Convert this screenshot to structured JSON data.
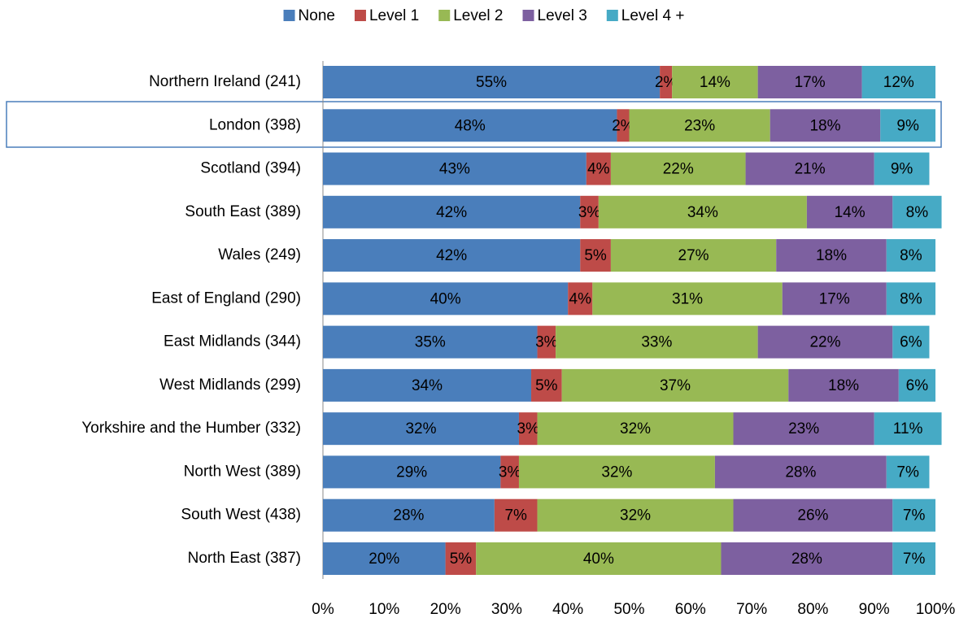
{
  "chart_data": {
    "type": "stacked-barh",
    "categories": [
      "Northern Ireland (241)",
      "London (398)",
      "Scotland (394)",
      "South East (389)",
      "Wales (249)",
      "East of England (290)",
      "East Midlands (344)",
      "West Midlands (299)",
      "Yorkshire and the Humber (332)",
      "North West (389)",
      "South West (438)",
      "North East (387)"
    ],
    "series": [
      {
        "name": "None",
        "color": "#4a7ebb",
        "values": [
          55,
          48,
          43,
          42,
          42,
          40,
          35,
          34,
          32,
          29,
          28,
          20
        ],
        "value_labels": [
          "55%",
          "48%",
          "43%",
          "42%",
          "42%",
          "40%",
          "35%",
          "34%",
          "32%",
          "29%",
          "28%",
          "20%"
        ]
      },
      {
        "name": "Level 1",
        "color": "#be4b48",
        "values": [
          2,
          2,
          4,
          3,
          5,
          4,
          3,
          5,
          3,
          3,
          7,
          5
        ],
        "value_labels": [
          "2%",
          "2%",
          "4%",
          "3%",
          "5%",
          "4%",
          "3%",
          "5%",
          "3%",
          "3%",
          "7%",
          "5%"
        ]
      },
      {
        "name": "Level 2",
        "color": "#98b954",
        "values": [
          14,
          23,
          22,
          34,
          27,
          31,
          33,
          37,
          32,
          32,
          32,
          40
        ],
        "value_labels": [
          "14%",
          "23%",
          "22%",
          "34%",
          "27%",
          "31%",
          "33%",
          "37%",
          "32%",
          "32%",
          "32%",
          "40%"
        ]
      },
      {
        "name": "Level 3",
        "color": "#7d60a0",
        "values": [
          17,
          18,
          21,
          14,
          18,
          17,
          22,
          18,
          23,
          28,
          26,
          28
        ],
        "value_labels": [
          "17%",
          "18%",
          "21%",
          "14%",
          "18%",
          "17%",
          "22%",
          "18%",
          "23%",
          "28%",
          "26%",
          "28%"
        ]
      },
      {
        "name": "Level 4 +",
        "color": "#46aac5",
        "values": [
          12,
          9,
          9,
          8,
          8,
          8,
          6,
          6,
          11,
          7,
          7,
          7
        ],
        "value_labels": [
          "12%",
          "9%",
          "9%",
          "8%",
          "8%",
          "8%",
          "6%",
          "6%",
          "11%",
          "7%",
          "7%",
          "7%"
        ]
      }
    ],
    "xlim": [
      0,
      100
    ],
    "xticks": [
      {
        "value": 0,
        "label": "0%"
      },
      {
        "value": 10,
        "label": "10%"
      },
      {
        "value": 20,
        "label": "20%"
      },
      {
        "value": 30,
        "label": "30%"
      },
      {
        "value": 40,
        "label": "40%"
      },
      {
        "value": 50,
        "label": "50%"
      },
      {
        "value": 60,
        "label": "60%"
      },
      {
        "value": 70,
        "label": "70%"
      },
      {
        "value": 80,
        "label": "80%"
      },
      {
        "value": 90,
        "label": "90%"
      },
      {
        "value": 100,
        "label": "100%"
      }
    ],
    "grid": false,
    "legend": "top"
  }
}
